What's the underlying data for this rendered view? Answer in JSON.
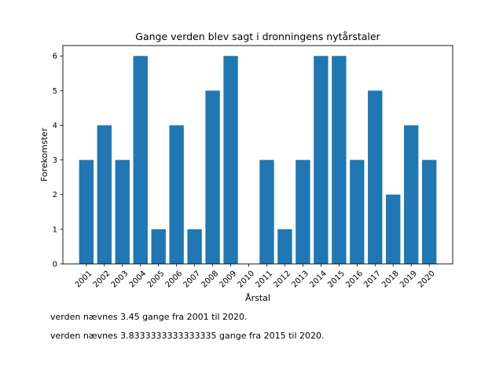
{
  "chart_data": {
    "type": "bar",
    "title": "Gange verden blev sagt i dronningens nytårstaler",
    "xlabel": "Årstal",
    "ylabel": "Forekomster",
    "categories": [
      "2001",
      "2002",
      "2003",
      "2004",
      "2005",
      "2006",
      "2007",
      "2008",
      "2009",
      "2010",
      "2011",
      "2012",
      "2013",
      "2014",
      "2015",
      "2016",
      "2017",
      "2018",
      "2019",
      "2020"
    ],
    "values": [
      3,
      4,
      3,
      6,
      1,
      4,
      1,
      5,
      6,
      0,
      3,
      1,
      3,
      6,
      6,
      3,
      5,
      2,
      4,
      3
    ],
    "yticks": [
      "0",
      "1",
      "2",
      "3",
      "4",
      "5",
      "6"
    ],
    "ylim": [
      0,
      6.3
    ],
    "bar_color": "#1f77b4",
    "grid": false
  },
  "captions": {
    "line1": "verden nævnes 3.45 gange fra 2001 til 2020.",
    "line2": "verden nævnes 3.8333333333333335 gange fra 2015 til 2020."
  }
}
